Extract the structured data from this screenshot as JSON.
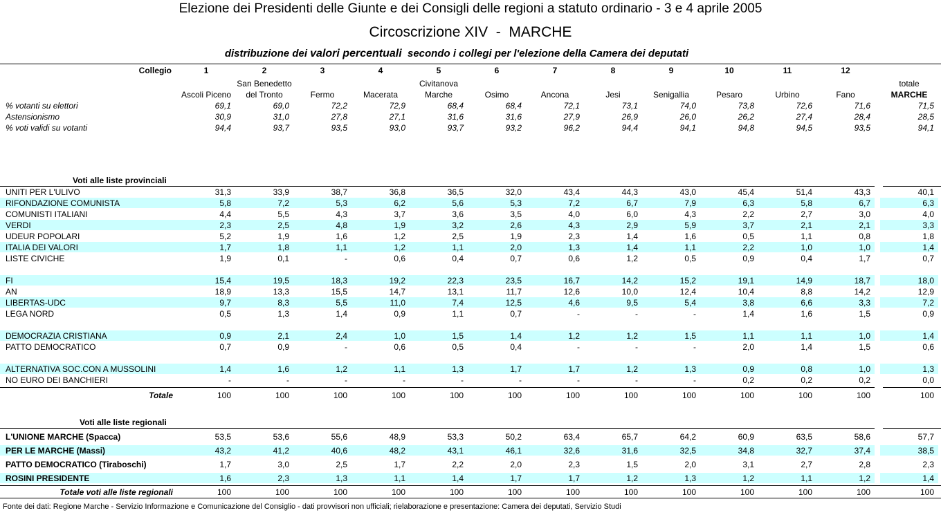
{
  "header": {
    "title": "Elezione dei Presidenti delle Giunte e dei Consigli delle regioni a statuto ordinario - 3 e 4 aprile 2005",
    "subtitle": "Circoscrizione XIV  -  MARCHE",
    "caption": [
      "distribuzione dei ",
      "valori percentuali",
      "  secondo i collegi per l'elezione della Camera dei deputati"
    ]
  },
  "table": {
    "collegio_label": "Collegio",
    "columns": [
      {
        "number": "1",
        "name": [
          "Ascoli Piceno"
        ]
      },
      {
        "number": "2",
        "name": [
          "San Benedetto",
          "del Tronto"
        ]
      },
      {
        "number": "3",
        "name": [
          "Fermo"
        ]
      },
      {
        "number": "4",
        "name": [
          "Macerata"
        ]
      },
      {
        "number": "5",
        "name": [
          "Civitanova",
          "Marche"
        ]
      },
      {
        "number": "6",
        "name": [
          "Osimo"
        ]
      },
      {
        "number": "7",
        "name": [
          "Ancona"
        ]
      },
      {
        "number": "8",
        "name": [
          "Jesi"
        ]
      },
      {
        "number": "9",
        "name": [
          "Senigallia"
        ]
      },
      {
        "number": "10",
        "name": [
          "Pesaro"
        ]
      },
      {
        "number": "11",
        "name": [
          "Urbino"
        ]
      },
      {
        "number": "12",
        "name": [
          "Fano"
        ]
      }
    ],
    "total_header": [
      "totale",
      "MARCHE"
    ],
    "stats": [
      {
        "label": "% votanti su elettori",
        "values": [
          "69,1",
          "69,0",
          "72,2",
          "72,9",
          "68,4",
          "68,4",
          "72,1",
          "73,1",
          "74,0",
          "73,8",
          "72,6",
          "71,6"
        ],
        "total": "71,5"
      },
      {
        "label": "Astensionismo",
        "values": [
          "30,9",
          "31,0",
          "27,8",
          "27,1",
          "31,6",
          "31,6",
          "27,9",
          "26,9",
          "26,0",
          "26,2",
          "27,4",
          "28,4"
        ],
        "total": "28,5"
      },
      {
        "label": "% voti validi su votanti",
        "values": [
          "94,4",
          "93,7",
          "93,5",
          "93,0",
          "93,7",
          "93,2",
          "96,2",
          "94,4",
          "94,1",
          "94,8",
          "94,5",
          "93,5"
        ],
        "total": "94,1"
      }
    ],
    "provincial": {
      "title": "Voti alle liste provinciali",
      "groups": [
        [
          {
            "label": "UNITI PER L'ULIVO",
            "values": [
              "31,3",
              "33,9",
              "38,7",
              "36,8",
              "36,5",
              "32,0",
              "43,4",
              "44,3",
              "43,0",
              "45,4",
              "51,4",
              "43,3"
            ],
            "total": "40,1",
            "shaded": false
          },
          {
            "label": "RIFONDAZIONE COMUNISTA",
            "values": [
              "5,8",
              "7,2",
              "5,3",
              "6,2",
              "5,6",
              "5,3",
              "7,2",
              "6,7",
              "7,9",
              "6,3",
              "5,8",
              "6,7"
            ],
            "total": "6,3",
            "shaded": true
          },
          {
            "label": "COMUNISTI ITALIANI",
            "values": [
              "4,4",
              "5,5",
              "4,3",
              "3,7",
              "3,6",
              "3,5",
              "4,0",
              "6,0",
              "4,3",
              "2,2",
              "2,7",
              "3,0"
            ],
            "total": "4,0",
            "shaded": false
          },
          {
            "label": "VERDI",
            "values": [
              "2,3",
              "2,5",
              "4,8",
              "1,9",
              "3,2",
              "2,6",
              "4,3",
              "2,9",
              "5,9",
              "3,7",
              "2,1",
              "2,1"
            ],
            "total": "3,3",
            "shaded": true
          },
          {
            "label": "UDEUR POPOLARI",
            "values": [
              "5,2",
              "1,9",
              "1,6",
              "1,2",
              "2,5",
              "1,9",
              "2,3",
              "1,4",
              "1,6",
              "0,5",
              "1,1",
              "0,8"
            ],
            "total": "1,8",
            "shaded": false
          },
          {
            "label": "ITALIA DEI VALORI",
            "values": [
              "1,7",
              "1,8",
              "1,1",
              "1,2",
              "1,1",
              "2,0",
              "1,3",
              "1,4",
              "1,1",
              "2,2",
              "1,0",
              "1,0"
            ],
            "total": "1,4",
            "shaded": true
          },
          {
            "label": "LISTE CIVICHE",
            "values": [
              "1,9",
              "0,1",
              "-",
              "0,6",
              "0,4",
              "0,7",
              "0,6",
              "1,2",
              "0,5",
              "0,9",
              "0,4",
              "1,7"
            ],
            "total": "0,7",
            "shaded": false
          }
        ],
        [
          {
            "label": "FI",
            "values": [
              "15,4",
              "19,5",
              "18,3",
              "19,2",
              "22,3",
              "23,5",
              "16,7",
              "14,2",
              "15,2",
              "19,1",
              "14,9",
              "18,7"
            ],
            "total": "18,0",
            "shaded": true
          },
          {
            "label": "AN",
            "values": [
              "18,9",
              "13,3",
              "15,5",
              "14,7",
              "13,1",
              "11,7",
              "12,6",
              "10,0",
              "12,4",
              "10,4",
              "8,8",
              "14,2"
            ],
            "total": "12,9",
            "shaded": false
          },
          {
            "label": "LIBERTAS-UDC",
            "values": [
              "9,7",
              "8,3",
              "5,5",
              "11,0",
              "7,4",
              "12,5",
              "4,6",
              "9,5",
              "5,4",
              "3,8",
              "6,6",
              "3,3"
            ],
            "total": "7,2",
            "shaded": true
          },
          {
            "label": "LEGA NORD",
            "values": [
              "0,5",
              "1,3",
              "1,4",
              "0,9",
              "1,1",
              "0,7",
              "-",
              "-",
              "-",
              "1,4",
              "1,6",
              "1,5"
            ],
            "total": "0,9",
            "shaded": false
          }
        ],
        [
          {
            "label": "DEMOCRAZIA CRISTIANA",
            "values": [
              "0,9",
              "2,1",
              "2,4",
              "1,0",
              "1,5",
              "1,4",
              "1,2",
              "1,2",
              "1,5",
              "1,1",
              "1,1",
              "1,0"
            ],
            "total": "1,4",
            "shaded": true
          },
          {
            "label": "PATTO DEMOCRATICO",
            "values": [
              "0,7",
              "0,9",
              "-",
              "0,6",
              "0,5",
              "0,4",
              "-",
              "-",
              "-",
              "2,0",
              "1,4",
              "1,5"
            ],
            "total": "0,6",
            "shaded": false
          }
        ],
        [
          {
            "label": "ALTERNATIVA SOC.CON A MUSSOLINI",
            "values": [
              "1,4",
              "1,6",
              "1,2",
              "1,1",
              "1,3",
              "1,7",
              "1,7",
              "1,2",
              "1,3",
              "0,9",
              "0,8",
              "1,0"
            ],
            "total": "1,3",
            "shaded": true
          },
          {
            "label": "NO EURO DEI BANCHIERI",
            "values": [
              "-",
              "-",
              "-",
              "-",
              "-",
              "-",
              "-",
              "-",
              "-",
              "0,2",
              "0,2",
              "0,2"
            ],
            "total": "0,0",
            "shaded": false
          }
        ]
      ],
      "total_row": {
        "label": "Totale",
        "values": [
          "100",
          "100",
          "100",
          "100",
          "100",
          "100",
          "100",
          "100",
          "100",
          "100",
          "100",
          "100"
        ],
        "total": "100"
      }
    },
    "regional": {
      "title": "Voti alle liste regionali",
      "rows": [
        {
          "label": "L'UNIONE MARCHE (Spacca)",
          "values": [
            "53,5",
            "53,6",
            "55,6",
            "48,9",
            "53,3",
            "50,2",
            "63,4",
            "65,7",
            "64,2",
            "60,9",
            "63,5",
            "58,6"
          ],
          "total": "57,7",
          "shaded": false
        },
        {
          "label": "PER LE MARCHE (Massi)",
          "values": [
            "43,2",
            "41,2",
            "40,6",
            "48,2",
            "43,1",
            "46,1",
            "32,6",
            "31,6",
            "32,5",
            "34,8",
            "32,7",
            "37,4"
          ],
          "total": "38,5",
          "shaded": true
        },
        {
          "label": "PATTO DEMOCRATICO (Tiraboschi)",
          "values": [
            "1,7",
            "3,0",
            "2,5",
            "1,7",
            "2,2",
            "2,0",
            "2,3",
            "1,5",
            "2,0",
            "3,1",
            "2,7",
            "2,8"
          ],
          "total": "2,3",
          "shaded": false
        },
        {
          "label": "ROSINI PRESIDENTE",
          "values": [
            "1,6",
            "2,3",
            "1,3",
            "1,1",
            "1,4",
            "1,7",
            "1,7",
            "1,2",
            "1,3",
            "1,2",
            "1,1",
            "1,2"
          ],
          "total": "1,4",
          "shaded": true
        }
      ],
      "total_row": {
        "label": "Totale voti alle liste regionali",
        "values": [
          "100",
          "100",
          "100",
          "100",
          "100",
          "100",
          "100",
          "100",
          "100",
          "100",
          "100",
          "100"
        ],
        "total": "100"
      }
    }
  },
  "footer": "Fonte dei dati: Regione Marche - Servizio Informazione e Comunicazione del Consiglio - dati provvisori non ufficiali; rielaborazione e presentazione: Camera dei deputati, Servizio Studi"
}
